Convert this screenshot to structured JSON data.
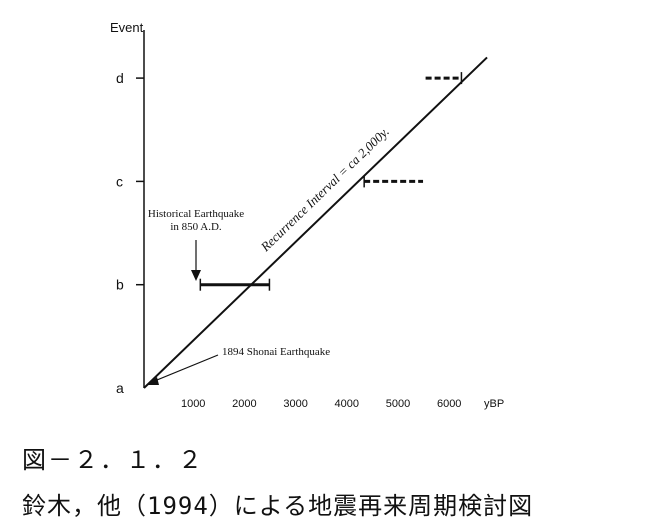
{
  "chart_data": {
    "type": "line",
    "ylabel": "Event",
    "xlabel": "yBP",
    "y_categories": [
      "a",
      "b",
      "c",
      "d"
    ],
    "x_ticks": [
      1000,
      2000,
      3000,
      4000,
      5000,
      6000
    ],
    "xlim": [
      0,
      7000
    ],
    "trend_line": {
      "label": "Recurrence Interval = ca 2,000y.",
      "points": [
        [
          0,
          0
        ],
        [
          6700,
          3.2
        ]
      ]
    },
    "events": [
      {
        "event": "b",
        "y": 1,
        "range": [
          1100,
          2450
        ],
        "style": "solid"
      },
      {
        "event": "c",
        "y": 2,
        "range": [
          4300,
          5450
        ],
        "style": "dashed",
        "cap": "start"
      },
      {
        "event": "d",
        "y": 3,
        "range": [
          5500,
          6200
        ],
        "style": "dashed",
        "cap": "end"
      }
    ],
    "annotations": [
      {
        "text_lines": [
          "Historical Earthquake",
          "in 850 A.D."
        ]
      },
      {
        "text_lines": [
          "1894 Shonai Earthquake"
        ]
      }
    ]
  },
  "caption": {
    "figure_number": "図－２．１．２",
    "description": "鈴木，他（1994）による地震再来周期検討図"
  }
}
